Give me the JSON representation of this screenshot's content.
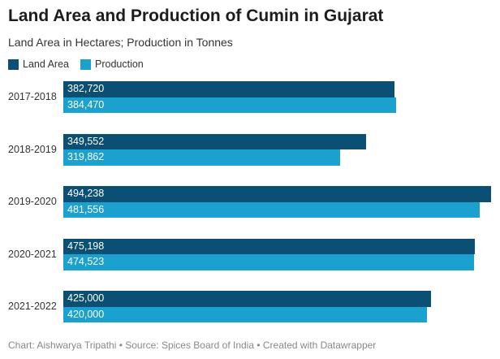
{
  "chart_data": {
    "type": "bar",
    "orientation": "horizontal",
    "title": "Land Area and Production of Cumin in Gujarat",
    "subtitle": "Land Area in Hectares; Production in Tonnes",
    "categories": [
      "2017-2018",
      "2018-2019",
      "2019-2020",
      "2020-2021",
      "2021-2022"
    ],
    "series": [
      {
        "name": "Land Area",
        "color": "#0b4f74",
        "values": [
          382720,
          349552,
          494238,
          475198,
          425000
        ],
        "labels": [
          "382,720",
          "349,552",
          "494,238",
          "475,198",
          "425,000"
        ]
      },
      {
        "name": "Production",
        "color": "#1ba1cd",
        "values": [
          384470,
          319862,
          481556,
          474523,
          420000
        ],
        "labels": [
          "384,470",
          "319,862",
          "481,556",
          "474,523",
          "420,000"
        ]
      }
    ],
    "xlim": [
      0,
      494238
    ],
    "grid": false,
    "legend_position": "top-left",
    "footer": "Chart: Aishwarya Tripathi • Source: Spices Board of India • Created with Datawrapper"
  }
}
